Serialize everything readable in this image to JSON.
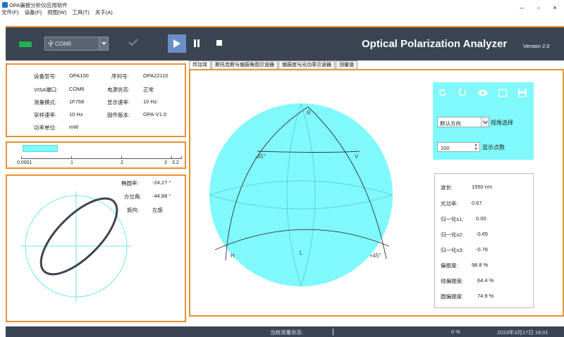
{
  "window": {
    "title": "OPA偏振分析仪应用软件",
    "minimize_glyph": "–",
    "maximize_glyph": "▫",
    "close_glyph": "×"
  },
  "menu": [
    "文件(F)",
    "设备(F)",
    "视图(W)",
    "工具(T)",
    "关于(A)"
  ],
  "toolbar": {
    "port": "COM6",
    "app_title": "Optical Polarization Analyzer",
    "version": "Version 2.0",
    "connection_led_color": "#22b14c",
    "icons": [
      "usb-icon",
      "check-icon",
      "play-icon",
      "pause-icon",
      "stop-icon"
    ]
  },
  "device_info": [
    {
      "label": "设备型号:",
      "value": "OPA100"
    },
    {
      "label": "序列号:",
      "value": "OPA22110"
    },
    {
      "label": "VISA端口:",
      "value": "COM6"
    },
    {
      "label": "电源状态:",
      "value": "正常"
    },
    {
      "label": "测量模式:",
      "value": "1F768"
    },
    {
      "label": "显示速率:",
      "value": "10 Hz"
    },
    {
      "label": "采样速率:",
      "value": "10 Hz"
    },
    {
      "label": "固件版本:",
      "value": "OPA-V1.0"
    },
    {
      "label": "功率单位:",
      "value": "mW"
    }
  ],
  "power_range": {
    "ticks": [
      "0.0001",
      "1",
      "2",
      "3",
      "3.2"
    ],
    "fill_fraction": 0.22
  },
  "ellipse": {
    "ellipticity_label": "椭圆率:",
    "ellipticity_value": "-24.27 °",
    "azimuth_label": "方位角:",
    "azimuth_value": "-44.88 °",
    "handedness_label": "旋向:",
    "handedness_value": "左旋"
  },
  "tabs": [
    "邦加球",
    "斯托克斯与偏振角图示波器",
    "偏振度与光功率示波器",
    "测量值"
  ],
  "sphere": {
    "labels": {
      "top": "R",
      "upper_left": "-45°",
      "upper_right": "V",
      "lower_left": "H",
      "lower_mid": "L",
      "lower_right": "+45°"
    },
    "fill_color": "#7ff9fb"
  },
  "view_controls": {
    "icons": [
      "refresh-icon",
      "rotate-icon",
      "eye-icon",
      "folder-icon",
      "save-icon"
    ],
    "view_direction": "默认方向",
    "view_label": "视角选择",
    "points": "100",
    "points_label": "显示点数"
  },
  "results": [
    {
      "label": "波长:",
      "value": "1550 nm"
    },
    {
      "label": "光功率:",
      "value": "0.67"
    },
    {
      "label": "归一化s1:",
      "value": "0.00"
    },
    {
      "label": "归一化s2:",
      "value": "-0.65"
    },
    {
      "label": "归一化s3:",
      "value": "-0.76"
    },
    {
      "label": "偏振度:",
      "value": "98.8 %"
    },
    {
      "label": "线偏振度:",
      "value": "64.4 %"
    },
    {
      "label": "圆偏振度:",
      "value": "74.9 %"
    }
  ],
  "status": {
    "saving_label": "当前测量状态:",
    "percent": "0 %",
    "datetime": "2023年3月17日 16:01"
  }
}
